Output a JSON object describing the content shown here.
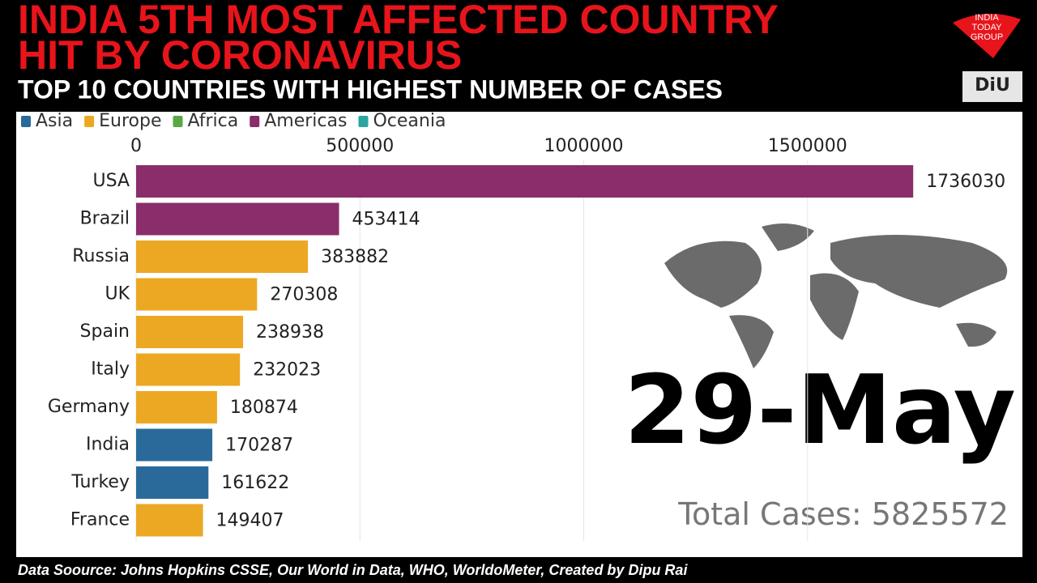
{
  "chart_data": {
    "type": "bar",
    "orientation": "horizontal",
    "headline": [
      "INDIA 5TH MOST AFFECTED COUNTRY",
      "HIT BY CORONAVIRUS"
    ],
    "title": "TOP 10 COUNTRIES WITH HIGHEST NUMBER OF CASES",
    "legend": [
      {
        "name": "Asia",
        "color": "#2a6a9b"
      },
      {
        "name": "Europe",
        "color": "#eca823"
      },
      {
        "name": "Africa",
        "color": "#5aa845"
      },
      {
        "name": "Americas",
        "color": "#8b2d6a"
      },
      {
        "name": "Oceania",
        "color": "#2aa6a0"
      }
    ],
    "categories": [
      "USA",
      "Brazil",
      "Russia",
      "UK",
      "Spain",
      "Italy",
      "Germany",
      "India",
      "Turkey",
      "France"
    ],
    "values": [
      1736030,
      453414,
      383882,
      270308,
      238938,
      232023,
      180874,
      170287,
      161622,
      149407
    ],
    "colors": [
      "#8b2d6a",
      "#8b2d6a",
      "#eca823",
      "#eca823",
      "#eca823",
      "#eca823",
      "#eca823",
      "#2a6a9b",
      "#2a6a9b",
      "#eca823"
    ],
    "xlim": [
      0,
      1980000
    ],
    "xticks": [
      0,
      500000,
      1000000,
      1500000
    ],
    "grid": true,
    "date": "29-May",
    "total_label": "Total Cases:",
    "total": 5825572,
    "source": "Data Soource: Johns Hopkins CSSE, Our World in Data, WHO, WorldoMeter, Created by Dipu Rai",
    "logos": [
      "INDIA",
      "TODAY",
      "GROUP",
      "DiU"
    ]
  }
}
